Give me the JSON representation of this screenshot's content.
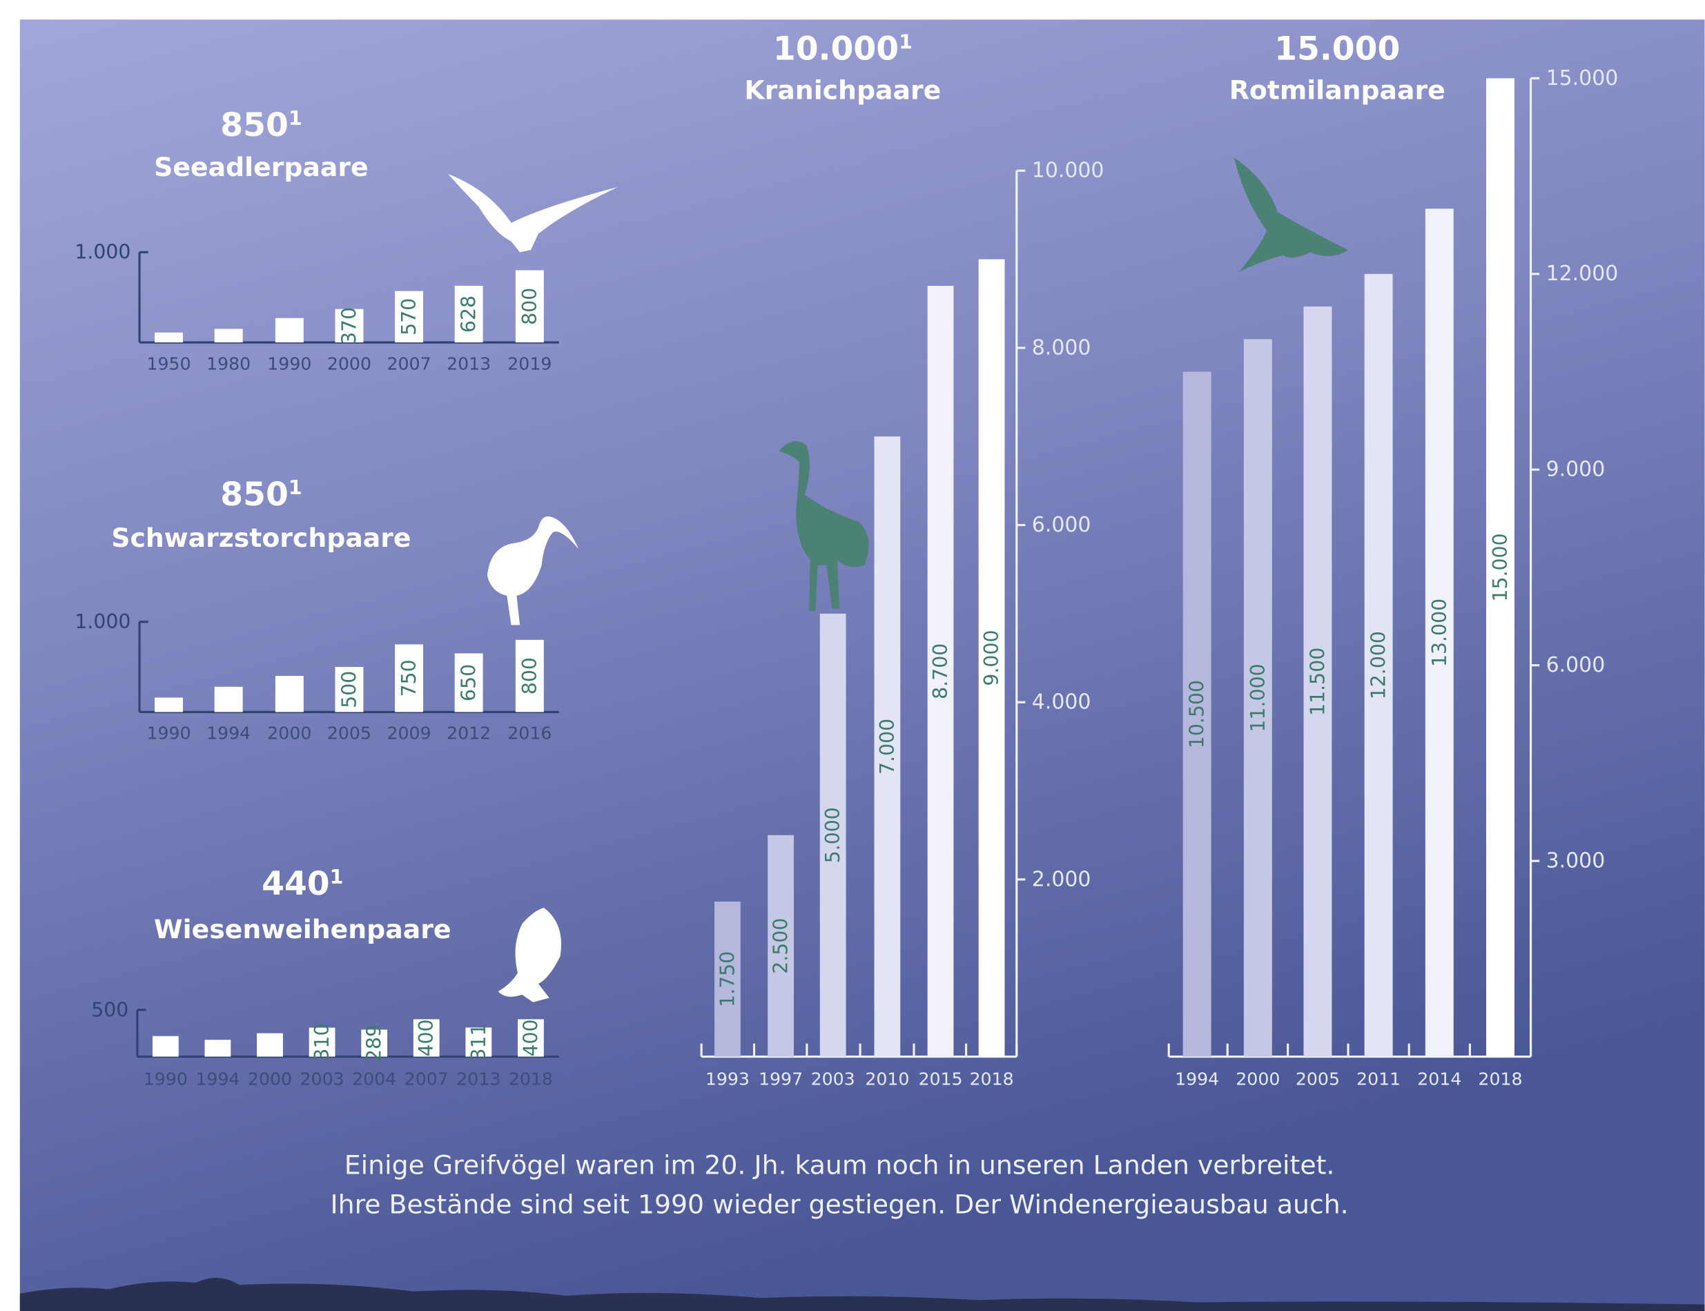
{
  "chart_data": [
    {
      "type": "bar",
      "headline": "850",
      "headline_sup": "1",
      "title": "Seeadlerpaare",
      "categories": [
        "1950",
        "1980",
        "1990",
        "2000",
        "2007",
        "2013",
        "2019"
      ],
      "values": [
        110,
        150,
        270,
        370,
        570,
        628,
        800
      ],
      "value_labels": [
        null,
        null,
        null,
        "370",
        "570",
        "628",
        "800"
      ],
      "ylim": [
        0,
        1000
      ],
      "yticks": [
        {
          "value": 1000,
          "label": "1.000"
        }
      ],
      "axis": "left",
      "color": "#ffffff",
      "value_label_color": "#3c7a6b"
    },
    {
      "type": "bar",
      "headline": "850",
      "headline_sup": "1",
      "title": "Schwarzstorchpaare",
      "categories": [
        "1990",
        "1994",
        "2000",
        "2005",
        "2009",
        "2012",
        "2016"
      ],
      "values": [
        160,
        280,
        400,
        500,
        750,
        650,
        800
      ],
      "value_labels": [
        null,
        null,
        null,
        "500",
        "750",
        "650",
        "800"
      ],
      "ylim": [
        0,
        1000
      ],
      "yticks": [
        {
          "value": 1000,
          "label": "1.000"
        }
      ],
      "axis": "left",
      "color": "#ffffff",
      "value_label_color": "#3c7a6b"
    },
    {
      "type": "bar",
      "headline": "440",
      "headline_sup": "1",
      "title": "Wiesenweihenpaare",
      "categories": [
        "1990",
        "1994",
        "2000",
        "2003",
        "2004",
        "2007",
        "2013",
        "2018"
      ],
      "values": [
        220,
        180,
        250,
        310,
        289,
        400,
        311,
        400
      ],
      "value_labels": [
        null,
        null,
        null,
        "310",
        "289",
        "400",
        "311",
        "400"
      ],
      "ylim": [
        0,
        500
      ],
      "yticks": [
        500
      ],
      "axis": "left",
      "color": "#ffffff",
      "value_label_color": "#3c7a6b"
    },
    {
      "type": "bar",
      "headline": "10.000",
      "headline_sup": "1",
      "title": "Kranichpaare",
      "categories": [
        "1993",
        "1997",
        "2003",
        "2010",
        "2015",
        "2018"
      ],
      "values": [
        1750,
        2500,
        5000,
        7000,
        8700,
        9000
      ],
      "value_labels": [
        "1.750",
        "2.500",
        "5.000",
        "7.000",
        "8.700",
        "9.000"
      ],
      "ylim": [
        0,
        10000
      ],
      "yticks": [
        {
          "value": 2000,
          "label": "2.000"
        },
        {
          "value": 4000,
          "label": "4.000"
        },
        {
          "value": 6000,
          "label": "6.000"
        },
        {
          "value": 8000,
          "label": "8.000"
        },
        {
          "value": 10000,
          "label": "10.000"
        }
      ],
      "axis": "right",
      "colors": [
        "#b5b8dc",
        "#c5c8e5",
        "#d5d7ee",
        "#e3e5f5",
        "#f0f1fa",
        "#ffffff"
      ],
      "value_label_color": "#3c7a6b"
    },
    {
      "type": "bar",
      "headline": "15.000",
      "title": "Rotmilanpaare",
      "categories": [
        "1994",
        "2000",
        "2005",
        "2011",
        "2014",
        "2018"
      ],
      "values": [
        10500,
        11000,
        11500,
        12000,
        13000,
        15000
      ],
      "value_labels": [
        "10.500",
        "11.000",
        "11.500",
        "12.000",
        "13.000",
        "15.000"
      ],
      "ylim": [
        0,
        15000
      ],
      "yticks": [
        {
          "value": 3000,
          "label": "3.000"
        },
        {
          "value": 6000,
          "label": "6.000"
        },
        {
          "value": 9000,
          "label": "9.000"
        },
        {
          "value": 12000,
          "label": "12.000"
        },
        {
          "value": 15000,
          "label": "15.000"
        }
      ],
      "axis": "right",
      "colors": [
        "#b5b8dc",
        "#c5c8e5",
        "#d5d7ee",
        "#e3e5f5",
        "#f0f1fa",
        "#ffffff"
      ],
      "value_label_color": "#3c7a6b"
    }
  ],
  "caption": {
    "lines": [
      "Einige Greifvögel waren im 20. Jh. kaum noch in unseren Landen verbreitet.",
      "Ihre Bestände sind seit 1990 wieder gestiegen. Der Windenergieausbau auch."
    ]
  }
}
